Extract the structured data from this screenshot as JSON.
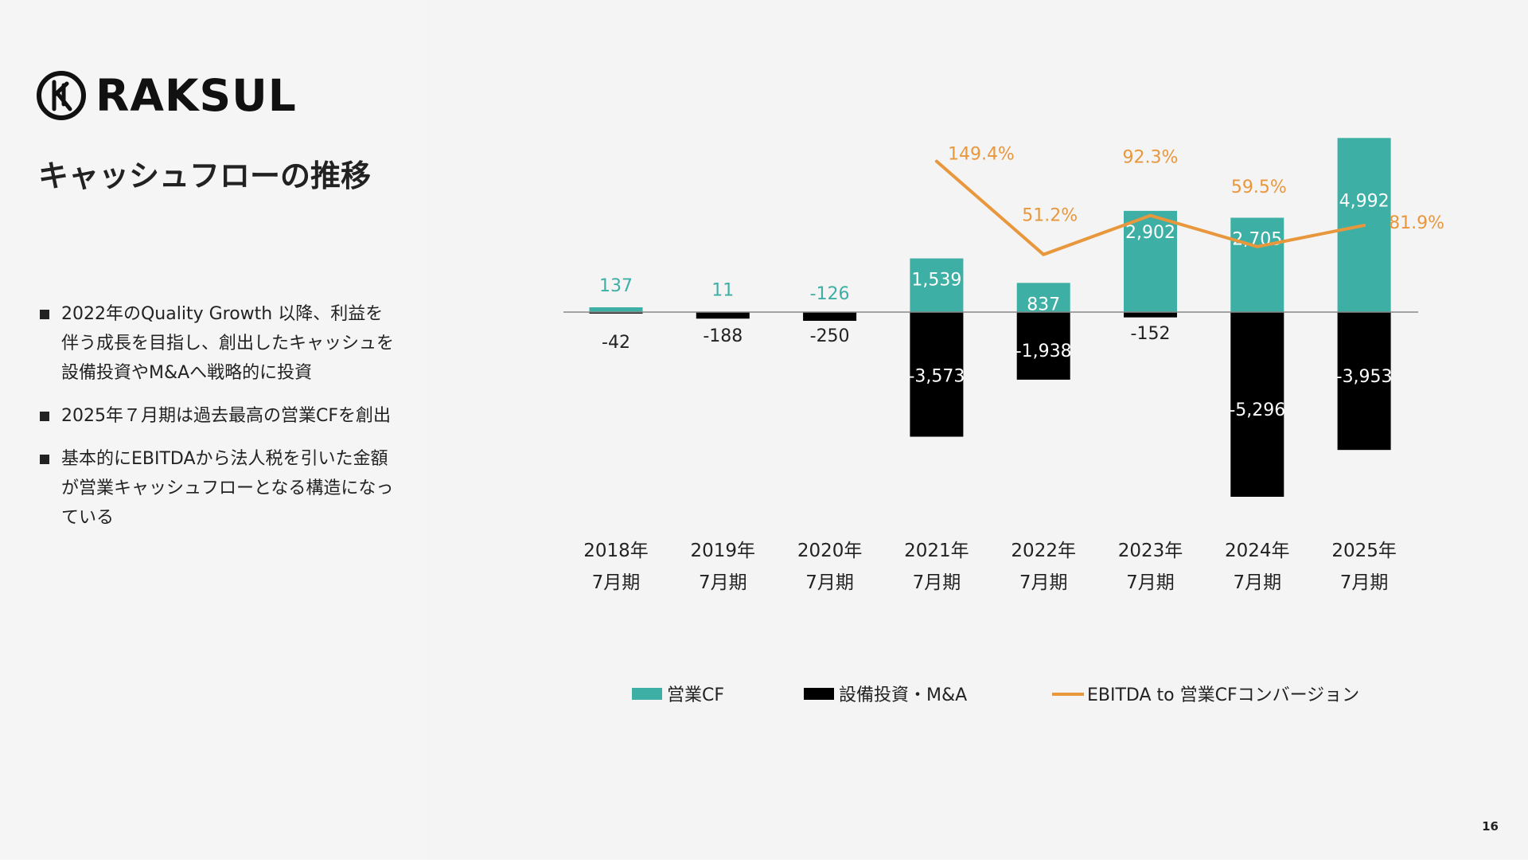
{
  "brand": {
    "name": "RAKSUL"
  },
  "slide": {
    "title": "キャッシュフローの推移",
    "page_number": "16",
    "bullets": [
      "2022年のQuality Growth 以降、利益を伴う成長を目指し、創出したキャッシュを設備投資やM&Aへ戦略的に投資",
      "2025年７月期は過去最高の営業CFを創出",
      "基本的にEBITDAから法人税を引いた金額が営業キャッシュフローとなる構造になっている"
    ]
  },
  "colors": {
    "operating_cf": "#3dafa5",
    "capex_ma": "#000000",
    "conversion": "#e8973c",
    "zero_line": "#888888"
  },
  "chart_data": {
    "type": "bar",
    "categories": [
      [
        "2018年",
        "7月期"
      ],
      [
        "2019年",
        "7月期"
      ],
      [
        "2020年",
        "7月期"
      ],
      [
        "2021年",
        "7月期"
      ],
      [
        "2022年",
        "7月期"
      ],
      [
        "2023年",
        "7月期"
      ],
      [
        "2024年",
        "7月期"
      ],
      [
        "2025年",
        "7月期"
      ]
    ],
    "series": [
      {
        "name": "営業CF",
        "kind": "bar",
        "values": [
          137,
          11,
          -126,
          1539,
          837,
          2902,
          2705,
          4992
        ],
        "labels": [
          "137",
          "11",
          "-126",
          "1,539",
          "837",
          "2,902",
          "2,705",
          "4,992"
        ]
      },
      {
        "name": "設備投資・M&A",
        "kind": "bar",
        "values": [
          -42,
          -188,
          -250,
          -3573,
          -1938,
          -152,
          -5296,
          -3953
        ],
        "labels": [
          "-42",
          "-188",
          "-250",
          "-3,573",
          "-1,938",
          "-152",
          "-5,296",
          "-3,953"
        ]
      },
      {
        "name": "EBITDA to 営業CFコンバージョン",
        "kind": "line",
        "values": [
          null,
          null,
          null,
          149.4,
          51.2,
          92.3,
          59.5,
          81.9
        ],
        "labels": [
          "",
          "",
          "",
          "149.4%",
          "51.2%",
          "92.3%",
          "59.5%",
          "81.9%"
        ]
      }
    ],
    "ylim": [
      -5600,
      5200
    ],
    "line_ylim": [
      35,
      160
    ],
    "legend_position": "bottom",
    "grid": false
  }
}
